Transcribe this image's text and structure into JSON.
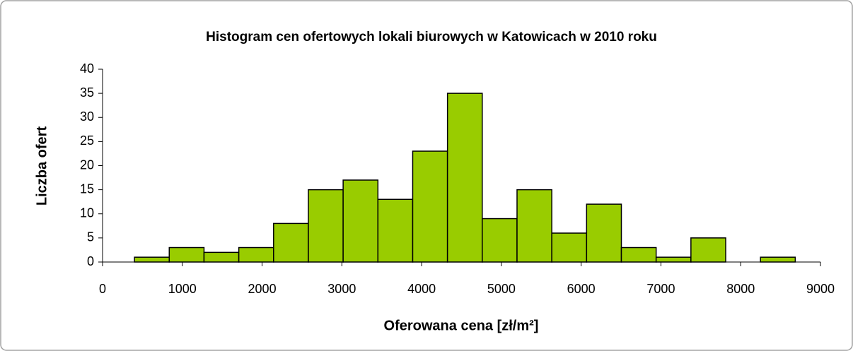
{
  "chart_data": {
    "type": "histogram",
    "title": "Histogram cen ofertowych lokali biurowych w Katowicach w 2010 roku",
    "xlabel": "Oferowana cena [zł/m²]",
    "ylabel": "Liczba ofert",
    "bins": [
      400,
      836,
      1272,
      1708,
      2144,
      2580,
      3016,
      3452,
      3888,
      4324,
      4760,
      5196,
      5632,
      6068,
      6504,
      6940,
      7376,
      7812,
      8248,
      8684
    ],
    "values": [
      1,
      3,
      2,
      3,
      8,
      15,
      17,
      13,
      23,
      35,
      9,
      15,
      6,
      12,
      3,
      1,
      5,
      0,
      1
    ],
    "color": "#99cc00",
    "xlim": [
      0,
      9000
    ],
    "xticks": [
      0,
      1000,
      2000,
      3000,
      4000,
      5000,
      6000,
      7000,
      8000,
      9000
    ],
    "ylim": [
      0,
      40
    ],
    "yticks": [
      0,
      5,
      10,
      15,
      20,
      25,
      30,
      35,
      40
    ]
  }
}
